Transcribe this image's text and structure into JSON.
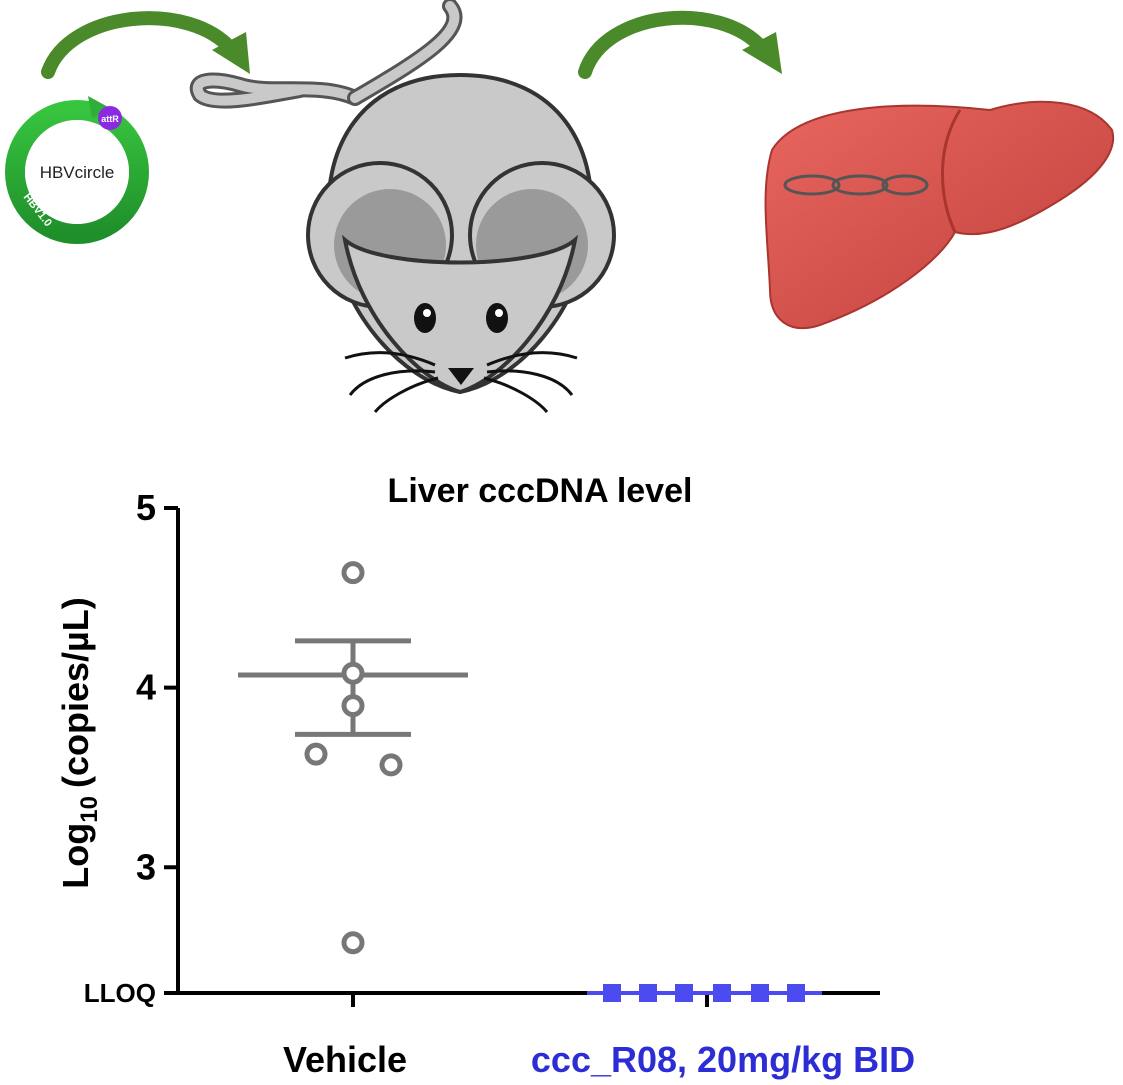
{
  "plasmid": {
    "name": "HBVcircle",
    "site_label": "attR",
    "backbone_label": "HBV1.0"
  },
  "colors": {
    "arrow_green": "#4a8a2a",
    "plasmid_green": "#2fae3a",
    "attR_purple": "#8a2be2",
    "mouse_gray": "#c9c9c9",
    "liver_red": "#d9534f",
    "vehicle_gray": "#777777",
    "treatment_blue": "#4b4bef",
    "treatment_label_blue": "#2d2dd6"
  },
  "chart_data": {
    "type": "scatter",
    "title": "Liver cccDNA level",
    "ylabel_main": "Log",
    "ylabel_sub": "10",
    "ylabel_tail": "(copies/µL)",
    "ylim": [
      2.3,
      5
    ],
    "yticks": [
      {
        "value": 5,
        "label": "5"
      },
      {
        "value": 4,
        "label": "4"
      },
      {
        "value": 3,
        "label": "3"
      },
      {
        "value": 2.3,
        "label": "LLOQ"
      }
    ],
    "categories": [
      "Vehicle",
      "ccc_R08, 20mg/kg BID"
    ],
    "series": [
      {
        "category": "Vehicle",
        "marker": "open-circle",
        "color": "#777777",
        "points": [
          4.64,
          4.08,
          3.9,
          3.63,
          3.57,
          2.58
        ],
        "mean": 4.07,
        "sem_upper": 4.26,
        "sem_lower": 3.74
      },
      {
        "category": "ccc_R08, 20mg/kg BID",
        "marker": "filled-square",
        "color": "#4b4bef",
        "points": [
          2.3,
          2.3,
          2.3,
          2.3,
          2.3,
          2.3
        ],
        "mean": 2.3,
        "sem_upper": 2.3,
        "sem_lower": 2.3
      }
    ]
  }
}
